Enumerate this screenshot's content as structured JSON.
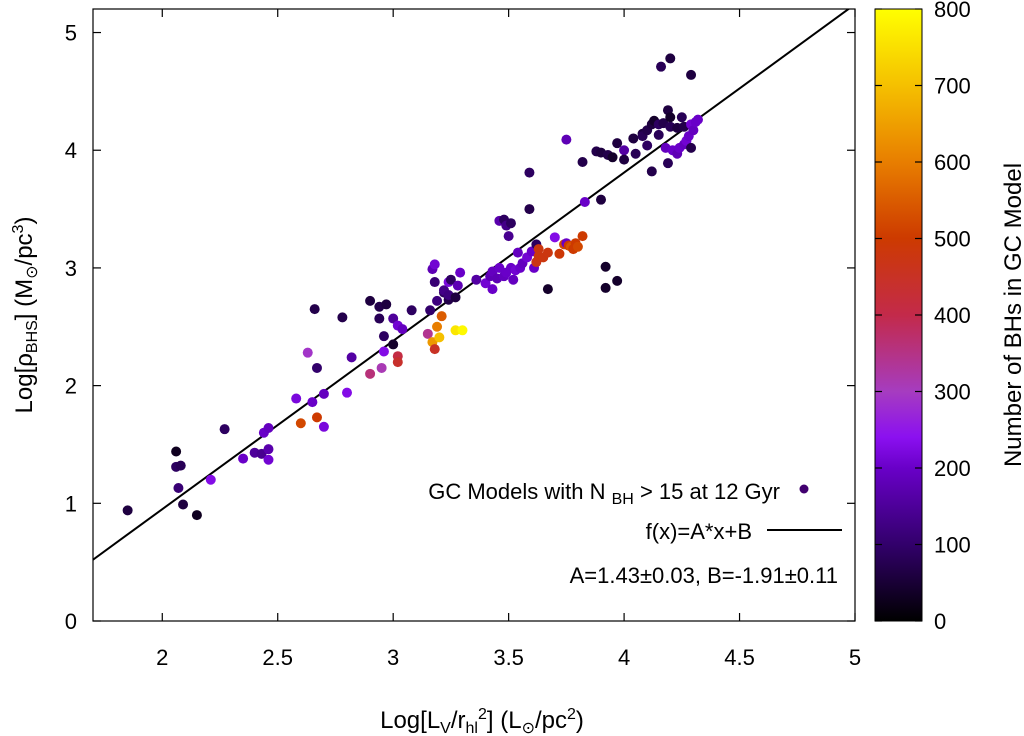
{
  "chart_data": {
    "type": "scatter",
    "xlabel": {
      "main": "Log[L",
      "sub1": "V",
      "mid": "/r",
      "sub2": "hl",
      "sup": "2",
      "end": "] (L",
      "sun": "⊙",
      "unit": "/pc",
      "unit_sup": "2",
      "close": ")"
    },
    "ylabel": {
      "main": "Log[ρ",
      "sub": "BHS",
      "mid": "] (M",
      "sun": "⊙",
      "unit": "/pc",
      "unit_sup": "3",
      "close": ")"
    },
    "xlim": [
      1.7,
      5.0
    ],
    "ylim": [
      0,
      5.2
    ],
    "xticks": [
      2,
      2.5,
      3,
      3.5,
      4,
      4.5,
      5
    ],
    "xtick_labels": [
      "2",
      "2.5",
      "3",
      "3.5",
      "4",
      "4.5",
      "5"
    ],
    "yticks": [
      0,
      1,
      2,
      3,
      4,
      5
    ],
    "ytick_labels": [
      "0",
      "1",
      "2",
      "3",
      "4",
      "5"
    ],
    "colorbar": {
      "label": "Number of BHs in GC Model",
      "range": [
        0,
        800
      ],
      "ticks": [
        0,
        100,
        200,
        300,
        400,
        500,
        600,
        700,
        800
      ],
      "tick_labels": [
        "0",
        "100",
        "200",
        "300",
        "400",
        "500",
        "600",
        "700",
        "800"
      ]
    },
    "legend": {
      "position": "bottom-right",
      "scatter_label": {
        "a": "GC Models with N ",
        "sub": "BH",
        "b": " > 15 at 12 Gyr"
      },
      "fit_label": "f(x)=A*x+B",
      "params": "A=1.43±0.03, B=-1.91±0.11"
    },
    "fit": {
      "A": 1.43,
      "B": -1.91
    },
    "points": [
      [
        1.85,
        0.94,
        60
      ],
      [
        2.06,
        1.44,
        30
      ],
      [
        2.06,
        1.31,
        90
      ],
      [
        2.08,
        1.32,
        80
      ],
      [
        2.07,
        1.13,
        110
      ],
      [
        2.09,
        0.99,
        60
      ],
      [
        2.15,
        0.9,
        30
      ],
      [
        2.21,
        1.2,
        230
      ],
      [
        2.27,
        1.63,
        90
      ],
      [
        2.35,
        1.38,
        200
      ],
      [
        2.4,
        1.43,
        150
      ],
      [
        2.43,
        1.42,
        140
      ],
      [
        2.44,
        1.6,
        200
      ],
      [
        2.46,
        1.64,
        190
      ],
      [
        2.46,
        1.46,
        170
      ],
      [
        2.46,
        1.37,
        210
      ],
      [
        2.58,
        1.89,
        220
      ],
      [
        2.6,
        1.68,
        520
      ],
      [
        2.63,
        2.28,
        290
      ],
      [
        2.65,
        1.86,
        200
      ],
      [
        2.67,
        1.73,
        500
      ],
      [
        2.66,
        2.65,
        70
      ],
      [
        2.67,
        2.15,
        100
      ],
      [
        2.7,
        1.93,
        190
      ],
      [
        2.7,
        1.65,
        220
      ],
      [
        2.78,
        2.58,
        70
      ],
      [
        2.8,
        1.94,
        230
      ],
      [
        2.82,
        2.24,
        160
      ],
      [
        2.9,
        2.72,
        60
      ],
      [
        2.9,
        2.1,
        360
      ],
      [
        2.94,
        2.67,
        70
      ],
      [
        2.94,
        2.57,
        80
      ],
      [
        2.95,
        2.15,
        310
      ],
      [
        2.96,
        2.29,
        230
      ],
      [
        2.96,
        2.42,
        90
      ],
      [
        2.97,
        2.69,
        60
      ],
      [
        3.0,
        2.35,
        40
      ],
      [
        3.0,
        2.57,
        150
      ],
      [
        3.02,
        2.51,
        210
      ],
      [
        3.02,
        2.25,
        410
      ],
      [
        3.02,
        2.2,
        440
      ],
      [
        3.04,
        2.48,
        190
      ],
      [
        3.08,
        2.64,
        90
      ],
      [
        3.15,
        2.44,
        340
      ],
      [
        3.16,
        2.64,
        100
      ],
      [
        3.17,
        2.99,
        180
      ],
      [
        3.17,
        2.37,
        640
      ],
      [
        3.18,
        2.31,
        450
      ],
      [
        3.18,
        2.88,
        110
      ],
      [
        3.18,
        3.03,
        210
      ],
      [
        3.19,
        2.72,
        120
      ],
      [
        3.19,
        2.5,
        600
      ],
      [
        3.2,
        2.41,
        700
      ],
      [
        3.21,
        2.59,
        550
      ],
      [
        3.22,
        2.79,
        90
      ],
      [
        3.22,
        2.81,
        130
      ],
      [
        3.24,
        2.73,
        70
      ],
      [
        3.24,
        2.77,
        120
      ],
      [
        3.24,
        2.88,
        220
      ],
      [
        3.25,
        2.9,
        90
      ],
      [
        3.27,
        2.47,
        760
      ],
      [
        3.27,
        2.75,
        60
      ],
      [
        3.28,
        2.85,
        180
      ],
      [
        3.29,
        2.96,
        200
      ],
      [
        3.3,
        2.47,
        790
      ],
      [
        3.36,
        2.9,
        160
      ],
      [
        3.4,
        2.87,
        210
      ],
      [
        3.42,
        2.93,
        180
      ],
      [
        3.43,
        2.82,
        200
      ],
      [
        3.43,
        2.97,
        190
      ],
      [
        3.45,
        2.91,
        180
      ],
      [
        3.46,
        3.4,
        170
      ],
      [
        3.46,
        3.0,
        200
      ],
      [
        3.48,
        2.93,
        190
      ],
      [
        3.48,
        3.41,
        90
      ],
      [
        3.49,
        3.36,
        130
      ],
      [
        3.49,
        2.96,
        200
      ],
      [
        3.5,
        3.27,
        140
      ],
      [
        3.51,
        3.38,
        90
      ],
      [
        3.51,
        3.0,
        200
      ],
      [
        3.52,
        2.9,
        190
      ],
      [
        3.53,
        2.98,
        210
      ],
      [
        3.54,
        3.13,
        190
      ],
      [
        3.55,
        3.0,
        200
      ],
      [
        3.56,
        3.04,
        190
      ],
      [
        3.58,
        3.09,
        210
      ],
      [
        3.59,
        3.81,
        90
      ],
      [
        3.59,
        3.5,
        70
      ],
      [
        3.6,
        3.14,
        200
      ],
      [
        3.61,
        3.0,
        200
      ],
      [
        3.62,
        3.2,
        90
      ],
      [
        3.62,
        3.05,
        470
      ],
      [
        3.63,
        3.16,
        480
      ],
      [
        3.63,
        3.1,
        480
      ],
      [
        3.65,
        3.09,
        480
      ],
      [
        3.67,
        3.13,
        480
      ],
      [
        3.67,
        2.82,
        40
      ],
      [
        3.7,
        3.26,
        230
      ],
      [
        3.72,
        3.12,
        490
      ],
      [
        3.74,
        3.2,
        520
      ],
      [
        3.75,
        3.21,
        200
      ],
      [
        3.75,
        4.09,
        180
      ],
      [
        3.76,
        3.19,
        500
      ],
      [
        3.77,
        3.18,
        540
      ],
      [
        3.78,
        3.16,
        500
      ],
      [
        3.79,
        3.21,
        500
      ],
      [
        3.8,
        3.18,
        520
      ],
      [
        3.82,
        3.27,
        500
      ],
      [
        3.82,
        3.9,
        70
      ],
      [
        3.83,
        3.56,
        200
      ],
      [
        3.88,
        3.99,
        70
      ],
      [
        3.9,
        3.98,
        60
      ],
      [
        3.9,
        3.58,
        60
      ],
      [
        3.92,
        3.01,
        40
      ],
      [
        3.92,
        2.83,
        40
      ],
      [
        3.93,
        3.96,
        70
      ],
      [
        3.95,
        3.94,
        40
      ],
      [
        3.97,
        4.06,
        60
      ],
      [
        3.97,
        2.89,
        40
      ],
      [
        4.0,
        4.0,
        160
      ],
      [
        4.0,
        3.92,
        60
      ],
      [
        4.04,
        4.1,
        60
      ],
      [
        4.05,
        3.97,
        80
      ],
      [
        4.08,
        4.14,
        60
      ],
      [
        4.08,
        4.12,
        80
      ],
      [
        4.1,
        4.17,
        70
      ],
      [
        4.1,
        4.04,
        90
      ],
      [
        4.12,
        3.82,
        70
      ],
      [
        4.12,
        4.22,
        60
      ],
      [
        4.13,
        4.25,
        40
      ],
      [
        4.15,
        4.13,
        80
      ],
      [
        4.15,
        4.22,
        90
      ],
      [
        4.16,
        4.71,
        80
      ],
      [
        4.17,
        4.23,
        70
      ],
      [
        4.18,
        4.02,
        190
      ],
      [
        4.19,
        4.34,
        60
      ],
      [
        4.19,
        3.89,
        80
      ],
      [
        4.2,
        4.78,
        60
      ],
      [
        4.2,
        4.28,
        40
      ],
      [
        4.2,
        4.2,
        80
      ],
      [
        4.21,
        4.0,
        200
      ],
      [
        4.23,
        3.97,
        180
      ],
      [
        4.23,
        4.19,
        60
      ],
      [
        4.24,
        4.02,
        200
      ],
      [
        4.25,
        4.28,
        80
      ],
      [
        4.26,
        4.05,
        190
      ],
      [
        4.26,
        4.2,
        70
      ],
      [
        4.27,
        4.08,
        210
      ],
      [
        4.28,
        4.12,
        200
      ],
      [
        4.29,
        4.02,
        70
      ],
      [
        4.29,
        4.64,
        60
      ],
      [
        4.29,
        4.22,
        210
      ],
      [
        4.3,
        4.17,
        190
      ],
      [
        4.31,
        4.24,
        200
      ],
      [
        4.32,
        4.26,
        200
      ]
    ]
  }
}
